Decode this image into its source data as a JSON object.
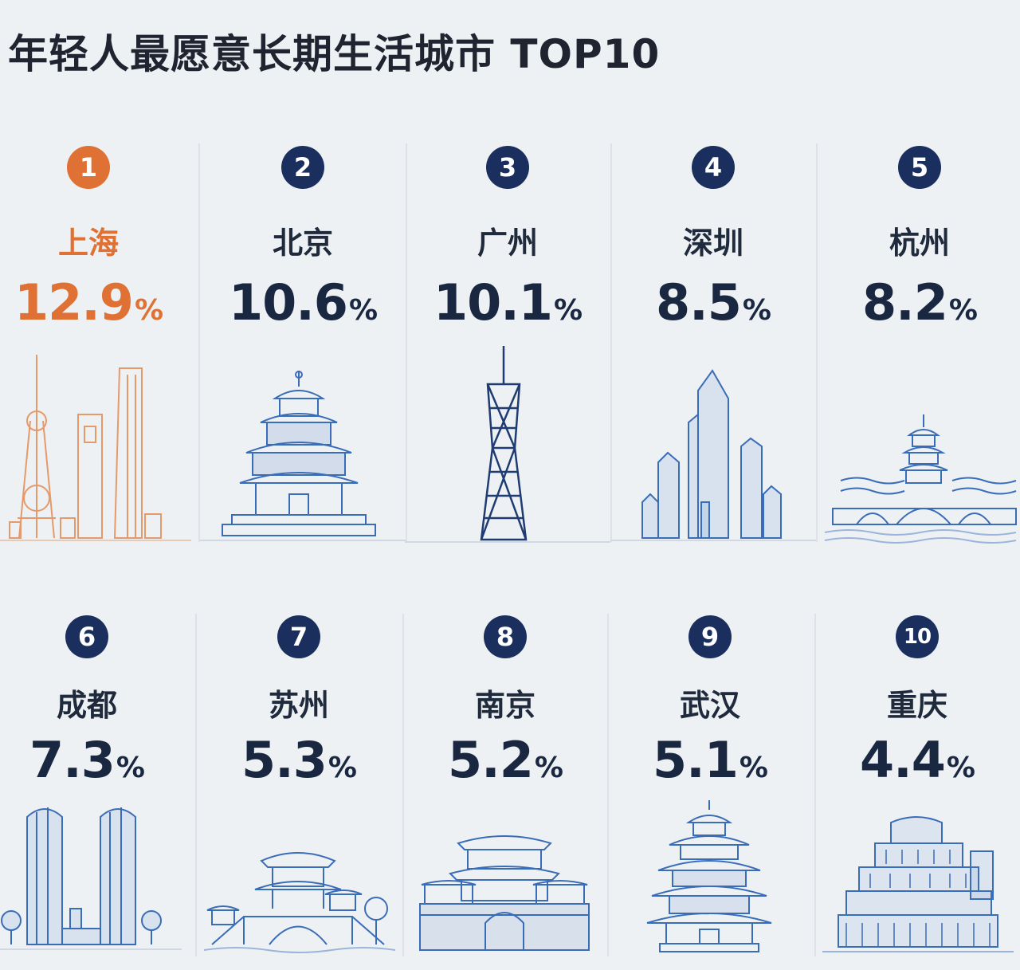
{
  "title": "年轻人最愿意长期生活城市 TOP10",
  "colors": {
    "highlight": "#e07134",
    "navy": "#1a2f5e",
    "line": "#3a6db8"
  },
  "cities": [
    {
      "rank": "1",
      "name": "上海",
      "value": "12.9",
      "unit": "%",
      "icon": "shanghai-skyline-icon"
    },
    {
      "rank": "2",
      "name": "北京",
      "value": "10.6",
      "unit": "%",
      "icon": "temple-of-heaven-icon"
    },
    {
      "rank": "3",
      "name": "广州",
      "value": "10.1",
      "unit": "%",
      "icon": "canton-tower-icon"
    },
    {
      "rank": "4",
      "name": "深圳",
      "value": "8.5",
      "unit": "%",
      "icon": "skyscrapers-icon"
    },
    {
      "rank": "5",
      "name": "杭州",
      "value": "8.2",
      "unit": "%",
      "icon": "pagoda-bridge-icon"
    },
    {
      "rank": "6",
      "name": "成都",
      "value": "7.3",
      "unit": "%",
      "icon": "twin-towers-icon"
    },
    {
      "rank": "7",
      "name": "苏州",
      "value": "5.3",
      "unit": "%",
      "icon": "garden-pavilion-bridge-icon"
    },
    {
      "rank": "8",
      "name": "南京",
      "value": "5.2",
      "unit": "%",
      "icon": "city-gate-icon"
    },
    {
      "rank": "9",
      "name": "武汉",
      "value": "5.1",
      "unit": "%",
      "icon": "yellow-crane-tower-icon"
    },
    {
      "rank": "10",
      "name": "重庆",
      "value": "4.4",
      "unit": "%",
      "icon": "stilt-houses-icon"
    }
  ]
}
